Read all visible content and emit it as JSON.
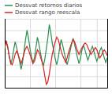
{
  "chart_data": {
    "type": "line",
    "series": [
      {
        "name": "Dessvat retornos diarios",
        "color": "#2a9050",
        "values": [
          0.4,
          1.1,
          0.6,
          -0.3,
          -0.9,
          -0.5,
          0.3,
          1.0,
          0.5,
          -0.1,
          -0.7,
          -1.4,
          -0.8,
          0.2,
          1.2,
          2.0,
          1.3,
          0.4,
          -0.3,
          -0.8,
          -0.4,
          0.5,
          1.4,
          0.8,
          0.1,
          -0.6,
          -1.1,
          -0.5,
          0.4,
          1.3,
          2.5,
          1.8,
          0.9,
          0.2,
          -0.5,
          -1.0,
          -0.4,
          0.5,
          1.2,
          0.7,
          0.1,
          -0.5,
          -1.0,
          -0.5,
          0.2,
          0.8,
          1.3,
          0.8,
          0.2,
          -0.4,
          -0.9,
          -0.4,
          0.3,
          0.7,
          0.3,
          -0.2,
          -0.6,
          -0.2,
          0.3,
          0.6,
          0.2,
          -0.3,
          -0.7,
          -0.3,
          0.2,
          0.5,
          0.1,
          -0.4,
          -0.8,
          -0.4
        ]
      },
      {
        "name": "Dessvat rango reescala",
        "color": "#dd2222",
        "values": [
          0.6,
          1.0,
          0.5,
          -0.2,
          -0.8,
          -1.0,
          -0.6,
          -0.1,
          0.2,
          -0.1,
          -0.5,
          -0.9,
          -0.5,
          0.0,
          0.4,
          0.6,
          0.3,
          -0.1,
          -0.5,
          -0.9,
          -0.7,
          -0.2,
          0.3,
          0.1,
          -0.3,
          -0.7,
          -1.2,
          -2.0,
          -2.7,
          -2.5,
          -1.8,
          -0.9,
          -0.1,
          0.5,
          1.0,
          1.4,
          1.2,
          0.7,
          0.2,
          -0.2,
          -0.5,
          -0.8,
          -0.4,
          0.1,
          0.5,
          0.9,
          1.2,
          1.0,
          0.6,
          0.2,
          -0.1,
          0.2,
          0.5,
          0.7,
          0.9,
          0.8,
          0.5,
          0.2,
          -0.1,
          0.1,
          0.3,
          0.5,
          0.3,
          -0.1,
          -0.4,
          -0.2,
          0.1,
          0.3,
          0.1,
          -0.2
        ]
      }
    ],
    "xlim": [
      0,
      69
    ],
    "xticks": [
      17,
      34,
      51,
      62
    ],
    "ylim": [
      -3.0,
      3.0
    ],
    "yticks": [
      -3,
      -2,
      -1,
      0,
      1,
      2,
      3
    ],
    "grid": true,
    "legend": "upper left",
    "tick_labels": false
  }
}
